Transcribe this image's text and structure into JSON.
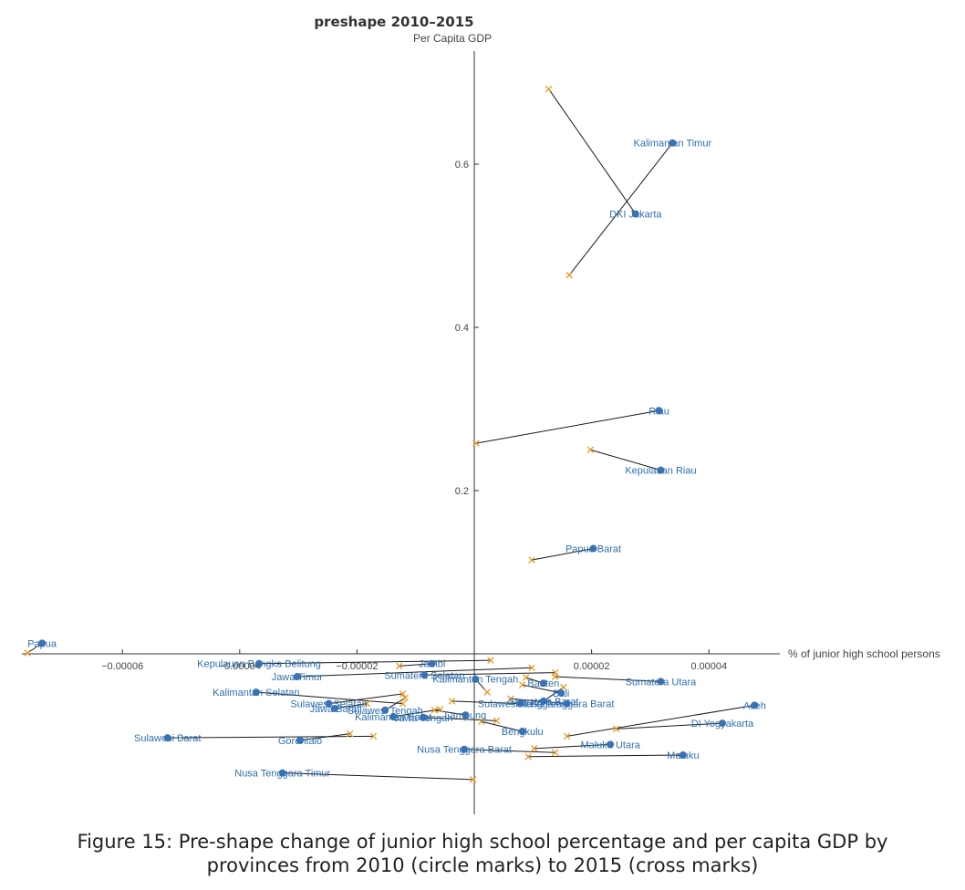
{
  "chart_data": {
    "type": "scatter",
    "title": "preshape 2010–2015",
    "xlabel": "% of junior high school persons",
    "ylabel": "Per Capita GDP",
    "xlim": [
      -8e-05,
      5e-05
    ],
    "ylim": [
      -0.2,
      0.74
    ],
    "x_ticks": [
      {
        "value": -6e-05,
        "label": "−0.00006"
      },
      {
        "value": -4e-05,
        "label": "−0.00004"
      },
      {
        "value": -2e-05,
        "label": "−0.00002"
      },
      {
        "value": 2e-05,
        "label": "0.00002"
      },
      {
        "value": 4e-05,
        "label": "0.00004"
      }
    ],
    "y_ticks": [
      {
        "value": 0.2,
        "label": "0.2"
      },
      {
        "value": 0.4,
        "label": "0.4"
      },
      {
        "value": 0.6,
        "label": "0.6"
      }
    ],
    "colors": {
      "circle": "#3f73b5",
      "cross": "#e49a24",
      "segment": "#1a1a1a",
      "label": "#2f6fb0",
      "axis": "#333333"
    },
    "legend": "none",
    "grid": false,
    "points": [
      {
        "name": "Kalimantan Timur",
        "x2010": 3.38e-05,
        "y2010": 0.626,
        "x2015": 1.62e-05,
        "y2015": 0.464
      },
      {
        "name": "DKI Jakarta",
        "x2010": 2.75e-05,
        "y2010": 0.539,
        "x2015": 1.27e-05,
        "y2015": 0.692
      },
      {
        "name": "Riau",
        "x2010": 3.15e-05,
        "y2010": 0.298,
        "x2015": 3e-07,
        "y2015": 0.258
      },
      {
        "name": "Kepulauan Riau",
        "x2010": 3.18e-05,
        "y2010": 0.225,
        "x2015": 1.98e-05,
        "y2015": 0.25
      },
      {
        "name": "Papua Barat",
        "x2010": 2.03e-05,
        "y2010": 0.129,
        "x2015": 9.8e-06,
        "y2015": 0.115
      },
      {
        "name": "Papua",
        "x2010": -7.37e-05,
        "y2010": 0.013,
        "x2015": -7.62e-05,
        "y2015": 0.001
      },
      {
        "name": "Kepulauan Bangka Belitung",
        "x2010": -3.67e-05,
        "y2010": -0.012,
        "x2015": 2.8e-06,
        "y2015": -0.008
      },
      {
        "name": "Jambi",
        "x2010": -7.2e-06,
        "y2010": -0.012,
        "x2015": -1.28e-05,
        "y2015": -0.015
      },
      {
        "name": "Jawa Timur",
        "x2010": -3.02e-05,
        "y2010": -0.028,
        "x2015": 9.8e-06,
        "y2015": -0.017
      },
      {
        "name": "Sumatera Selatan",
        "x2010": -8.5e-06,
        "y2010": -0.026,
        "x2015": 1.38e-05,
        "y2015": -0.023
      },
      {
        "name": "Kalimantan Tengah",
        "x2010": 2e-07,
        "y2010": -0.031,
        "x2015": 2.2e-06,
        "y2015": -0.047
      },
      {
        "name": "Banten",
        "x2010": 1.18e-05,
        "y2010": -0.036,
        "x2015": 8.8e-06,
        "y2015": -0.029
      },
      {
        "name": "Sumatera Utara",
        "x2010": 3.18e-05,
        "y2010": -0.034,
        "x2015": 1.38e-05,
        "y2015": -0.028
      },
      {
        "name": "Bali",
        "x2010": 1.48e-05,
        "y2010": -0.048,
        "x2015": 8.2e-06,
        "y2015": -0.038
      },
      {
        "name": "Kalimantan Selatan",
        "x2010": -3.72e-05,
        "y2010": -0.047,
        "x2015": -1.22e-05,
        "y2015": -0.061
      },
      {
        "name": "Sumatera Barat",
        "x2010": 1.18e-05,
        "y2010": -0.058,
        "x2015": 1.52e-05,
        "y2015": -0.041
      },
      {
        "name": "Sulawesi Tenggara",
        "x2010": 7.8e-06,
        "y2010": -0.061,
        "x2015": -3.8e-06,
        "y2015": -0.058
      },
      {
        "name": "Nusa Tenggara Barat",
        "x2010": 1.58e-05,
        "y2010": -0.061,
        "x2015": 6.2e-06,
        "y2015": -0.055
      },
      {
        "name": "Sulawesi Selatan",
        "x2010": -2.48e-05,
        "y2010": -0.061,
        "x2015": -1.22e-05,
        "y2015": -0.049
      },
      {
        "name": "Jawa Barat",
        "x2010": -2.38e-05,
        "y2010": -0.067,
        "x2015": -1.83e-05,
        "y2015": -0.061
      },
      {
        "name": "Sulawesi Tengah",
        "x2010": -1.52e-05,
        "y2010": -0.069,
        "x2015": -1.18e-05,
        "y2015": -0.054
      },
      {
        "name": "Kalimantan Barat",
        "x2010": -1.38e-05,
        "y2010": -0.077,
        "x2015": -5.8e-06,
        "y2015": -0.068
      },
      {
        "name": "Jawa Tengah",
        "x2010": -8.7e-06,
        "y2010": -0.078,
        "x2015": 3.8e-06,
        "y2015": -0.082
      },
      {
        "name": "Lampung",
        "x2010": -1.5e-06,
        "y2010": -0.075,
        "x2015": -6.8e-06,
        "y2015": -0.069
      },
      {
        "name": "Aceh",
        "x2010": 4.78e-05,
        "y2010": -0.063,
        "x2015": 1.58e-05,
        "y2015": -0.101
      },
      {
        "name": "DI Yogyakarta",
        "x2010": 4.23e-05,
        "y2010": -0.085,
        "x2015": 2.42e-05,
        "y2015": -0.092
      },
      {
        "name": "Bengkulu",
        "x2010": 8.2e-06,
        "y2010": -0.095,
        "x2015": 1.2e-06,
        "y2015": -0.083
      },
      {
        "name": "Sulawesi Barat",
        "x2010": -5.23e-05,
        "y2010": -0.103,
        "x2015": -1.72e-05,
        "y2015": -0.101
      },
      {
        "name": "Gorontalo",
        "x2010": -2.97e-05,
        "y2010": -0.106,
        "x2015": -2.12e-05,
        "y2015": -0.098
      },
      {
        "name": "Maluku Utara",
        "x2010": 2.32e-05,
        "y2010": -0.111,
        "x2015": 1.02e-05,
        "y2015": -0.116
      },
      {
        "name": "Nusa Tenggara Barat",
        "x2010": -1.7e-06,
        "y2010": -0.117,
        "x2015": 1.38e-05,
        "y2015": -0.121
      },
      {
        "name": "Maluku",
        "x2010": 3.56e-05,
        "y2010": -0.124,
        "x2015": 9.2e-06,
        "y2015": -0.126
      },
      {
        "name": "Nusa Tenggara Timur",
        "x2010": -3.27e-05,
        "y2010": -0.146,
        "x2015": -2e-07,
        "y2015": -0.154
      }
    ]
  },
  "caption": "Figure 15: Pre-shape change of junior high school percentage and per capita GDP by\nprovinces from 2010 (circle marks) to 2015 (cross marks)"
}
